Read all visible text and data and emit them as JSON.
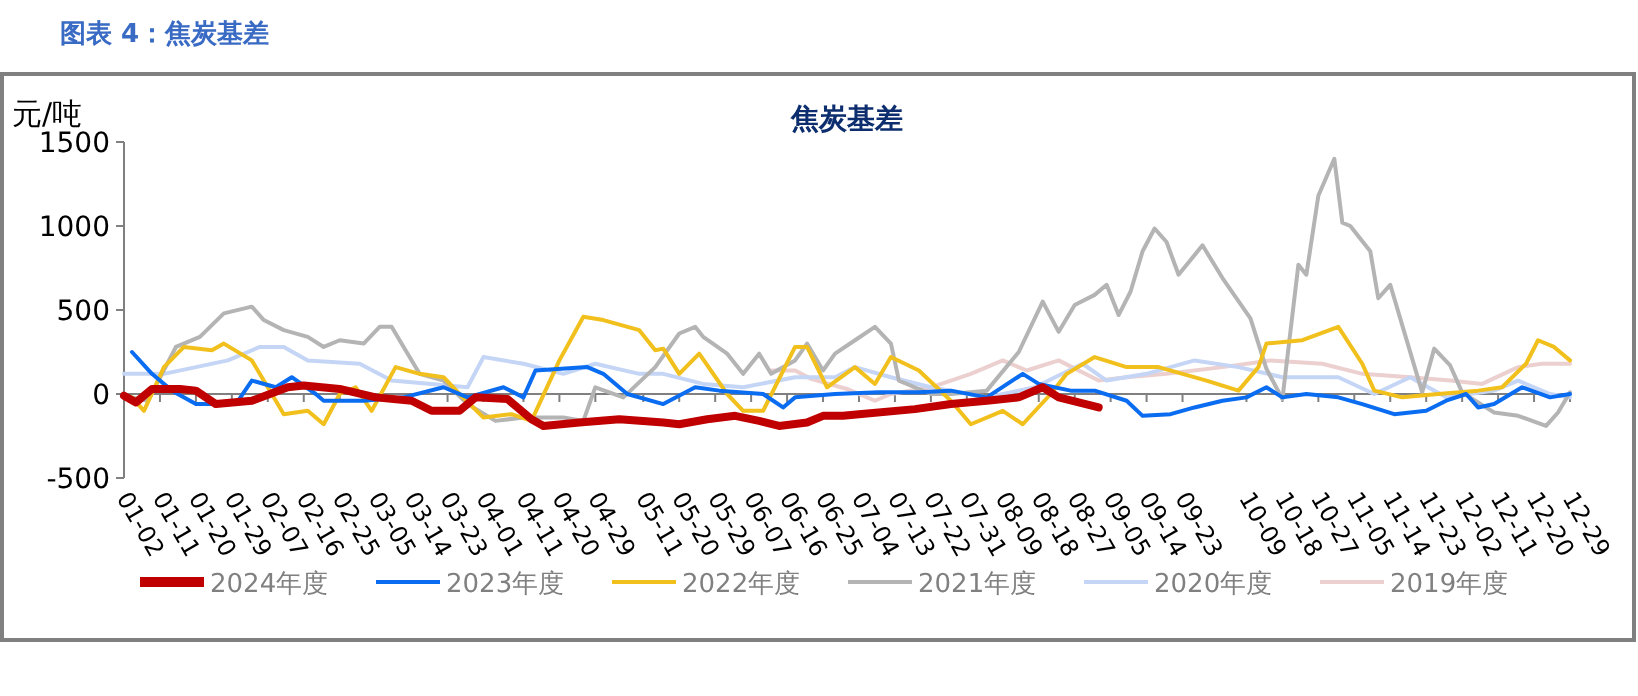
{
  "chart_data": {
    "type": "line",
    "title": "焦炭基差",
    "ylabel": "元/吨",
    "annotations": [
      "图表 4：焦炭基差"
    ],
    "xlim": [
      "--01-02",
      "--12-29"
    ],
    "ylim": [
      -500,
      1500
    ],
    "yticks": [
      -500,
      0,
      500,
      1000,
      1500
    ],
    "xticks": [
      {
        "value": "--01-02",
        "label": "01-02"
      },
      {
        "value": "--01-11",
        "label": "01-11"
      },
      {
        "value": "--01-20",
        "label": "01-20"
      },
      {
        "value": "--01-29",
        "label": "01-29"
      },
      {
        "value": "--02-07",
        "label": "02-07"
      },
      {
        "value": "--02-16",
        "label": "02-16"
      },
      {
        "value": "--02-25",
        "label": "02-25"
      },
      {
        "value": "--03-05",
        "label": "03-05"
      },
      {
        "value": "--03-14",
        "label": "03-14"
      },
      {
        "value": "--03-23",
        "label": "03-23"
      },
      {
        "value": "--04-01",
        "label": "04-01"
      },
      {
        "value": "--04-11",
        "label": "04-11"
      },
      {
        "value": "--04-20",
        "label": "04-20"
      },
      {
        "value": "--04-29",
        "label": "04-29"
      },
      {
        "value": "--05-11",
        "label": "05-11"
      },
      {
        "value": "--05-20",
        "label": "05-20"
      },
      {
        "value": "--05-29",
        "label": "05-29"
      },
      {
        "value": "--06-07",
        "label": "06-07"
      },
      {
        "value": "--06-16",
        "label": "06-16"
      },
      {
        "value": "--06-25",
        "label": "06-25"
      },
      {
        "value": "--07-04",
        "label": "07-04"
      },
      {
        "value": "--07-13",
        "label": "07-13"
      },
      {
        "value": "--07-22",
        "label": "07-22"
      },
      {
        "value": "--07-31",
        "label": "07-31"
      },
      {
        "value": "--08-09",
        "label": "08-09"
      },
      {
        "value": "--08-18",
        "label": "08-18"
      },
      {
        "value": "--08-27",
        "label": "08-27"
      },
      {
        "value": "--09-05",
        "label": "09-05"
      },
      {
        "value": "--09-14",
        "label": "09-14"
      },
      {
        "value": "--09-23",
        "label": "09-23"
      },
      {
        "value": "--10-09",
        "label": "10-09"
      },
      {
        "value": "--10-18",
        "label": "10-18"
      },
      {
        "value": "--10-27",
        "label": "10-27"
      },
      {
        "value": "--11-05",
        "label": "11-05"
      },
      {
        "value": "--11-14",
        "label": "11-14"
      },
      {
        "value": "--11-23",
        "label": "11-23"
      },
      {
        "value": "--12-02",
        "label": "12-02"
      },
      {
        "value": "--12-11",
        "label": "12-11"
      },
      {
        "value": "--12-20",
        "label": "12-20"
      },
      {
        "value": "--12-29",
        "label": "12-29"
      }
    ],
    "legend": "bottom",
    "line_style": "solid",
    "series": [
      {
        "name": "2024年度",
        "color": "#c00000",
        "x": [
          "--01-02",
          "--01-05",
          "--01-09",
          "--01-16",
          "--01-20",
          "--01-25",
          "--02-03",
          "--02-12",
          "--02-16",
          "--02-25",
          "--03-05",
          "--03-14",
          "--03-19",
          "--03-26",
          "--03-30",
          "--04-07",
          "--04-13",
          "--04-16",
          "--04-25",
          "--05-05",
          "--05-16",
          "--05-20",
          "--05-27",
          "--06-03",
          "--06-09",
          "--06-14",
          "--06-21",
          "--06-25",
          "--06-30",
          "--07-04",
          "--07-18",
          "--07-27",
          "--08-05",
          "--08-13",
          "--08-19",
          "--08-23",
          "--08-28",
          "--09-02"
        ],
        "values": [
          -10,
          -50,
          30,
          30,
          20,
          -60,
          -40,
          40,
          50,
          30,
          -20,
          -40,
          -100,
          -100,
          -20,
          -30,
          -150,
          -190,
          -170,
          -150,
          -170,
          -180,
          -150,
          -130,
          -160,
          -190,
          -170,
          -130,
          -130,
          -120,
          -90,
          -60,
          -40,
          -20,
          40,
          -20,
          -50,
          -80
        ]
      },
      {
        "name": "2023年度",
        "color": "#0a6cf0",
        "x": [
          "--01-04",
          "--01-09",
          "--01-14",
          "--01-20",
          "--01-30",
          "--02-03",
          "--02-09",
          "--02-13",
          "--02-19",
          "--02-21",
          "--03-02",
          "--03-12",
          "--03-22",
          "--03-28",
          "--04-06",
          "--04-11",
          "--04-14",
          "--04-27",
          "--05-01",
          "--05-07",
          "--05-16",
          "--05-24",
          "--05-30",
          "--06-10",
          "--06-15",
          "--06-18",
          "--06-28",
          "--07-09",
          "--07-19",
          "--07-27",
          "--08-05",
          "--08-14",
          "--08-18",
          "--08-26",
          "--09-01",
          "--09-09",
          "--09-13",
          "--09-20",
          "--09-26",
          "--10-03",
          "--10-09",
          "--10-14",
          "--10-18",
          "--10-24",
          "--11-01",
          "--11-07",
          "--11-15",
          "--11-23",
          "--11-28",
          "--12-03",
          "--12-06",
          "--12-10",
          "--12-17",
          "--12-24",
          "--12-29"
        ],
        "values": [
          250,
          120,
          20,
          -60,
          -60,
          80,
          40,
          100,
          0,
          -40,
          -40,
          -20,
          40,
          -20,
          40,
          -20,
          140,
          160,
          120,
          0,
          -60,
          40,
          20,
          0,
          -80,
          -20,
          0,
          10,
          10,
          20,
          -20,
          120,
          60,
          20,
          20,
          -40,
          -130,
          -120,
          -80,
          -40,
          -20,
          40,
          -20,
          0,
          -20,
          -60,
          -120,
          -100,
          -40,
          0,
          -80,
          -60,
          40,
          -20,
          0
        ]
      },
      {
        "name": "2022年度",
        "color": "#f2c01c",
        "x": [
          "--01-04",
          "--01-07",
          "--01-12",
          "--01-17",
          "--01-24",
          "--01-27",
          "--02-03",
          "--02-07",
          "--02-11",
          "--02-17",
          "--02-21",
          "--02-25",
          "--02-29",
          "--03-04",
          "--03-10",
          "--03-16",
          "--03-22",
          "--03-26",
          "--04-01",
          "--04-08",
          "--04-13",
          "--04-20",
          "--04-26",
          "--05-01",
          "--05-10",
          "--05-14",
          "--05-16",
          "--05-20",
          "--05-25",
          "--06-01",
          "--06-05",
          "--06-10",
          "--06-18",
          "--06-21",
          "--06-26",
          "--07-03",
          "--07-08",
          "--07-12",
          "--07-19",
          "--07-27",
          "--08-01",
          "--08-09",
          "--08-14",
          "--08-21",
          "--08-25",
          "--09-01",
          "--09-09",
          "--09-17",
          "--09-29",
          "--10-07",
          "--10-12",
          "--10-14",
          "--10-23",
          "--11-01",
          "--11-07",
          "--11-10",
          "--11-17",
          "--11-26",
          "--12-06",
          "--12-12",
          "--12-18",
          "--12-21",
          "--12-25",
          "--12-29"
        ],
        "values": [
          -20,
          -100,
          160,
          280,
          260,
          300,
          200,
          40,
          -120,
          -100,
          -180,
          0,
          40,
          -100,
          160,
          120,
          100,
          0,
          -140,
          -120,
          -160,
          200,
          460,
          440,
          380,
          260,
          270,
          120,
          240,
          0,
          -100,
          -100,
          280,
          280,
          40,
          160,
          60,
          220,
          140,
          -40,
          -180,
          -100,
          -180,
          0,
          120,
          220,
          160,
          160,
          80,
          20,
          160,
          300,
          320,
          400,
          180,
          20,
          -20,
          0,
          20,
          40,
          180,
          320,
          280,
          200
        ]
      },
      {
        "name": "2021年度",
        "color": "#b4b4b4",
        "x": [
          "--01-04",
          "--01-08",
          "--01-15",
          "--01-21",
          "--01-27",
          "--02-03",
          "--02-06",
          "--02-11",
          "--02-17",
          "--02-21",
          "--02-25",
          "--03-02",
          "--03-06",
          "--03-09",
          "--03-12",
          "--03-16",
          "--03-22",
          "--03-28",
          "--04-04",
          "--04-11",
          "--04-16",
          "--04-21",
          "--04-26",
          "--04-29",
          "--05-06",
          "--05-14",
          "--05-20",
          "--05-24",
          "--05-26",
          "--06-01",
          "--06-05",
          "--06-09",
          "--06-12",
          "--06-18",
          "--06-21",
          "--06-25",
          "--06-28",
          "--07-03",
          "--07-08",
          "--07-12",
          "--07-14",
          "--07-22",
          "--07-27",
          "--08-05",
          "--08-13",
          "--08-19",
          "--08-23",
          "--08-27",
          "--09-01",
          "--09-04",
          "--09-07",
          "--09-10",
          "--09-13",
          "--09-16",
          "--09-19",
          "--09-22",
          "--09-28",
          "--10-03",
          "--10-10",
          "--10-14",
          "--10-18",
          "--10-22",
          "--10-24",
          "--10-27",
          "--10-31",
          "--11-02",
          "--11-04",
          "--11-09",
          "--11-11",
          "--11-14",
          "--11-18",
          "--11-22",
          "--11-25",
          "--11-29",
          "--12-02",
          "--12-10",
          "--12-16",
          "--12-23",
          "--12-26",
          "--12-29"
        ],
        "values": [
          -20,
          -40,
          280,
          340,
          480,
          520,
          440,
          380,
          340,
          280,
          320,
          300,
          400,
          400,
          280,
          120,
          80,
          -60,
          -160,
          -140,
          -140,
          -140,
          -160,
          40,
          -20,
          160,
          360,
          400,
          340,
          240,
          120,
          240,
          120,
          200,
          300,
          140,
          240,
          320,
          400,
          300,
          80,
          0,
          0,
          20,
          250,
          550,
          370,
          530,
          590,
          650,
          470,
          610,
          850,
          985,
          905,
          710,
          885,
          690,
          450,
          150,
          -30,
          770,
          710,
          1180,
          1400,
          1020,
          1000,
          850,
          570,
          650,
          330,
          10,
          270,
          170,
          10,
          -110,
          -130,
          -190,
          -110,
          10
        ]
      },
      {
        "name": "2020年度",
        "color": "#c5d5f5",
        "x": [
          "--01-02",
          "--01-12",
          "--01-20",
          "--01-28",
          "--02-05",
          "--02-11",
          "--02-17",
          "--03-01",
          "--03-09",
          "--03-19",
          "--03-28",
          "--04-01",
          "--04-11",
          "--04-21",
          "--04-29",
          "--05-10",
          "--05-16",
          "--05-26",
          "--06-05",
          "--06-18",
          "--06-28",
          "--07-03",
          "--07-12",
          "--07-22",
          "--08-05",
          "--08-17",
          "--08-29",
          "--09-04",
          "--09-14",
          "--09-26",
          "--10-07",
          "--10-18",
          "--11-01",
          "--11-10",
          "--11-19",
          "--11-28",
          "--12-10",
          "--12-16",
          "--12-24",
          "--12-29"
        ],
        "values": [
          120,
          120,
          160,
          200,
          280,
          280,
          200,
          180,
          80,
          60,
          40,
          220,
          180,
          120,
          180,
          120,
          120,
          60,
          40,
          100,
          100,
          160,
          100,
          40,
          -20,
          40,
          180,
          80,
          120,
          200,
          160,
          100,
          100,
          0,
          100,
          -20,
          20,
          80,
          0,
          -20
        ]
      },
      {
        "name": "2019年度",
        "color": "#ecd0d0",
        "x": [
          "--06-12",
          "--06-18",
          "--06-22",
          "--07-01",
          "--07-08",
          "--07-12",
          "--07-22",
          "--08-01",
          "--08-09",
          "--08-15",
          "--08-23",
          "--09-02",
          "--09-09",
          "--09-19",
          "--10-03",
          "--10-15",
          "--10-28",
          "--11-07",
          "--11-19",
          "--11-29",
          "--12-07",
          "--12-16",
          "--12-22",
          "--12-29"
        ],
        "values": [
          140,
          140,
          90,
          30,
          -40,
          0,
          40,
          120,
          200,
          140,
          200,
          80,
          100,
          120,
          160,
          200,
          180,
          120,
          100,
          80,
          60,
          160,
          180,
          180
        ]
      }
    ]
  }
}
